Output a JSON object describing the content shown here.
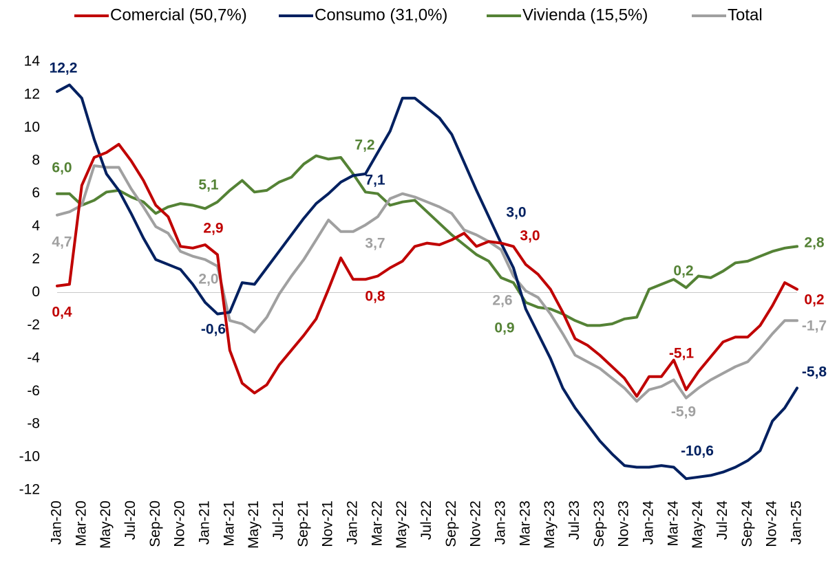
{
  "chart_data": {
    "type": "line",
    "categories": [
      "Jan-20",
      null,
      "Mar-20",
      null,
      "May-20",
      null,
      "Jul-20",
      null,
      "Sep-20",
      null,
      "Nov-20",
      null,
      "Jan-21",
      null,
      "Mar-21",
      null,
      "May-21",
      null,
      "Jul-21",
      null,
      "Sep-21",
      null,
      "Nov-21",
      null,
      "Jan-22",
      null,
      "Mar-22",
      null,
      "May-22",
      null,
      "Jul-22",
      null,
      "Sep-22",
      null,
      "Nov-22",
      null,
      "Jan-23",
      null,
      "Mar-23",
      null,
      "May-23",
      null,
      "Jul-23",
      null,
      "Sep-23",
      null,
      "Nov-23",
      null,
      "Jan-24",
      null,
      "Mar-24",
      null,
      "May-24",
      null,
      "Jul-24",
      null,
      "Sep-24",
      null,
      "Nov-24",
      null,
      "Jan-25"
    ],
    "series": [
      {
        "name": "Comercial (50,7%)",
        "color": "#c00000",
        "values": [
          0.4,
          0.5,
          6.5,
          8.2,
          8.5,
          9.0,
          8.0,
          6.8,
          5.3,
          4.6,
          2.8,
          2.7,
          2.9,
          2.3,
          -3.5,
          -5.5,
          -6.1,
          -5.6,
          -4.4,
          -3.5,
          -2.6,
          -1.6,
          0.2,
          2.1,
          0.8,
          0.8,
          1.0,
          1.5,
          1.9,
          2.8,
          3.0,
          2.9,
          3.2,
          3.6,
          2.8,
          3.1,
          3.0,
          2.8,
          1.7,
          1.1,
          0.2,
          -1.2,
          -2.8,
          -3.2,
          -3.8,
          -4.5,
          -5.2,
          -6.3,
          -5.1,
          -5.1,
          -4.1,
          -5.9,
          -4.8,
          -3.9,
          -3.0,
          -2.7,
          -2.7,
          -2.0,
          -0.8,
          0.6,
          0.2
        ],
        "value_labels": [
          "0,4",
          null,
          null,
          null,
          null,
          null,
          null,
          null,
          null,
          null,
          null,
          null,
          "2,9",
          null,
          null,
          null,
          null,
          null,
          null,
          null,
          null,
          null,
          null,
          null,
          "0,8",
          null,
          null,
          null,
          null,
          null,
          null,
          null,
          null,
          null,
          null,
          null,
          "3,0",
          null,
          null,
          null,
          null,
          null,
          null,
          null,
          null,
          null,
          null,
          null,
          "-5,1",
          null,
          null,
          null,
          null,
          null,
          null,
          null,
          null,
          null,
          null,
          null,
          "0,2"
        ]
      },
      {
        "name": "Consumo (31,0%)",
        "color": "#002060",
        "values": [
          12.2,
          12.6,
          11.8,
          9.3,
          7.2,
          6.2,
          4.8,
          3.3,
          2.0,
          1.7,
          1.4,
          0.5,
          -0.6,
          -1.3,
          -1.2,
          0.6,
          0.5,
          1.5,
          2.5,
          3.5,
          4.5,
          5.4,
          6.0,
          6.7,
          7.1,
          7.2,
          8.5,
          9.8,
          11.8,
          11.8,
          11.2,
          10.6,
          9.6,
          7.9,
          6.2,
          4.6,
          3.0,
          1.5,
          -1.0,
          -2.5,
          -4.0,
          -5.8,
          -7.0,
          -8.0,
          -9.0,
          -9.8,
          -10.5,
          -10.6,
          -10.6,
          -10.5,
          -10.6,
          -11.3,
          -11.2,
          -11.1,
          -10.9,
          -10.6,
          -10.2,
          -9.6,
          -7.8,
          -7.0,
          -5.8
        ],
        "value_labels": [
          "12,2",
          null,
          null,
          null,
          null,
          null,
          null,
          null,
          null,
          null,
          null,
          null,
          "-0,6",
          null,
          null,
          null,
          null,
          null,
          null,
          null,
          null,
          null,
          null,
          null,
          "7,1",
          null,
          null,
          null,
          null,
          null,
          null,
          null,
          null,
          null,
          null,
          null,
          "3,0",
          null,
          null,
          null,
          null,
          null,
          null,
          null,
          null,
          null,
          null,
          null,
          "-10,6",
          null,
          null,
          null,
          null,
          null,
          null,
          null,
          null,
          null,
          null,
          null,
          "-5,8"
        ]
      },
      {
        "name": "Vivienda (15,5%)",
        "color": "#548235",
        "values": [
          6.0,
          6.0,
          5.3,
          5.6,
          6.1,
          6.2,
          5.8,
          5.5,
          4.8,
          5.2,
          5.4,
          5.3,
          5.1,
          5.5,
          6.2,
          6.8,
          6.1,
          6.2,
          6.7,
          7.0,
          7.8,
          8.3,
          8.1,
          8.2,
          7.2,
          6.1,
          6.0,
          5.3,
          5.5,
          5.6,
          4.9,
          4.2,
          3.5,
          2.9,
          2.3,
          1.9,
          0.9,
          0.6,
          -0.6,
          -0.9,
          -1.0,
          -1.3,
          -1.7,
          -2.0,
          -2.0,
          -1.9,
          -1.6,
          -1.5,
          0.2,
          0.5,
          0.8,
          0.3,
          1.0,
          0.9,
          1.3,
          1.8,
          1.9,
          2.2,
          2.5,
          2.7,
          2.8
        ],
        "value_labels": [
          "6,0",
          null,
          null,
          null,
          null,
          null,
          null,
          null,
          null,
          null,
          null,
          null,
          "5,1",
          null,
          null,
          null,
          null,
          null,
          null,
          null,
          null,
          null,
          null,
          null,
          "7,2",
          null,
          null,
          null,
          null,
          null,
          null,
          null,
          null,
          null,
          null,
          null,
          "0,9",
          null,
          null,
          null,
          null,
          null,
          null,
          null,
          null,
          null,
          null,
          null,
          "0,2",
          null,
          null,
          null,
          null,
          null,
          null,
          null,
          null,
          null,
          null,
          null,
          "2,8"
        ]
      },
      {
        "name": "Total",
        "color": "#a0a0a0",
        "values": [
          4.7,
          4.9,
          5.3,
          7.7,
          7.6,
          7.6,
          6.3,
          5.2,
          4.0,
          3.6,
          2.5,
          2.2,
          2.0,
          1.6,
          -1.7,
          -1.9,
          -2.4,
          -1.5,
          -0.1,
          1.0,
          2.0,
          3.2,
          4.4,
          3.7,
          3.7,
          4.1,
          4.6,
          5.7,
          6.0,
          5.8,
          5.5,
          5.2,
          4.8,
          3.8,
          3.5,
          3.1,
          2.6,
          1.0,
          0.1,
          -0.3,
          -1.3,
          -2.5,
          -3.8,
          -4.2,
          -4.6,
          -5.2,
          -5.8,
          -6.6,
          -5.9,
          -5.7,
          -5.3,
          -6.4,
          -5.8,
          -5.3,
          -4.9,
          -4.5,
          -4.2,
          -3.4,
          -2.5,
          -1.7,
          -1.7
        ],
        "value_labels": [
          "4,7",
          null,
          null,
          null,
          null,
          null,
          null,
          null,
          null,
          null,
          null,
          null,
          "2,0",
          null,
          null,
          null,
          null,
          null,
          null,
          null,
          null,
          null,
          null,
          null,
          "3,7",
          null,
          null,
          null,
          null,
          null,
          null,
          null,
          null,
          null,
          null,
          null,
          "2,6",
          null,
          null,
          null,
          null,
          null,
          null,
          null,
          null,
          null,
          null,
          null,
          "-5,9",
          null,
          null,
          null,
          null,
          null,
          null,
          null,
          null,
          null,
          null,
          null,
          "-1,7"
        ]
      }
    ],
    "ylim": [
      -12,
      14
    ],
    "yticks": [
      -12,
      -10,
      -8,
      -6,
      -4,
      -2,
      0,
      2,
      4,
      6,
      8,
      10,
      12,
      14
    ],
    "legend": "top",
    "grid": false
  }
}
